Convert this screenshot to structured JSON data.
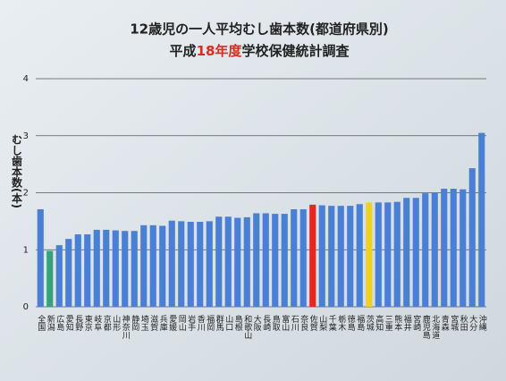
{
  "chart_data": {
    "type": "bar",
    "title": "12歳児の一人平均むし歯本数(都道府県別)",
    "subtitle": [
      "平成",
      "18年度",
      "学校保健統計調査"
    ],
    "y_label": "むし歯本数(本)",
    "categories": [
      "全国",
      "新潟",
      "広島",
      "愛知",
      "長野",
      "東京",
      "岐阜",
      "京都",
      "山形",
      "神奈川",
      "静岡",
      "埼玉",
      "滋賀",
      "兵庫",
      "愛媛",
      "岡山",
      "岩手",
      "香川",
      "福岡",
      "群馬",
      "山口",
      "島根",
      "和歌山",
      "大阪",
      "長崎",
      "鳥取",
      "富山",
      "石川",
      "奈良",
      "佐賀",
      "山梨",
      "千葉",
      "栃木",
      "徳島",
      "福島",
      "茨城",
      "高知",
      "三重",
      "熊本",
      "福井",
      "宮崎",
      "鹿児島",
      "北海道",
      "青森",
      "宮城",
      "秋田",
      "大分",
      "沖縄"
    ],
    "values": [
      1.71,
      0.98,
      1.08,
      1.19,
      1.27,
      1.27,
      1.35,
      1.35,
      1.34,
      1.33,
      1.33,
      1.43,
      1.43,
      1.42,
      1.51,
      1.5,
      1.49,
      1.49,
      1.5,
      1.58,
      1.58,
      1.56,
      1.57,
      1.64,
      1.64,
      1.63,
      1.63,
      1.71,
      1.71,
      1.79,
      1.78,
      1.77,
      1.77,
      1.77,
      1.8,
      1.83,
      1.83,
      1.83,
      1.84,
      1.91,
      1.91,
      1.99,
      2.0,
      2.07,
      2.07,
      2.06,
      2.43,
      3.05
    ],
    "colors": [
      "#4a7fd6",
      "#3aa07a",
      "#4a7fd6",
      "#4a7fd6",
      "#4a7fd6",
      "#4a7fd6",
      "#4a7fd6",
      "#4a7fd6",
      "#4a7fd6",
      "#4a7fd6",
      "#4a7fd6",
      "#4a7fd6",
      "#4a7fd6",
      "#4a7fd6",
      "#4a7fd6",
      "#4a7fd6",
      "#4a7fd6",
      "#4a7fd6",
      "#4a7fd6",
      "#4a7fd6",
      "#4a7fd6",
      "#4a7fd6",
      "#4a7fd6",
      "#4a7fd6",
      "#4a7fd6",
      "#4a7fd6",
      "#4a7fd6",
      "#4a7fd6",
      "#4a7fd6",
      "#e02a20",
      "#4a7fd6",
      "#4a7fd6",
      "#4a7fd6",
      "#4a7fd6",
      "#4a7fd6",
      "#f0d020",
      "#4a7fd6",
      "#4a7fd6",
      "#4a7fd6",
      "#4a7fd6",
      "#4a7fd6",
      "#4a7fd6",
      "#4a7fd6",
      "#4a7fd6",
      "#4a7fd6",
      "#4a7fd6",
      "#4a7fd6",
      "#4a7fd6"
    ],
    "subtitle_highlight": "#e02a20",
    "ylim": [
      0,
      4
    ],
    "yticks": [
      0,
      1,
      2,
      3,
      4
    ],
    "grid": true
  }
}
